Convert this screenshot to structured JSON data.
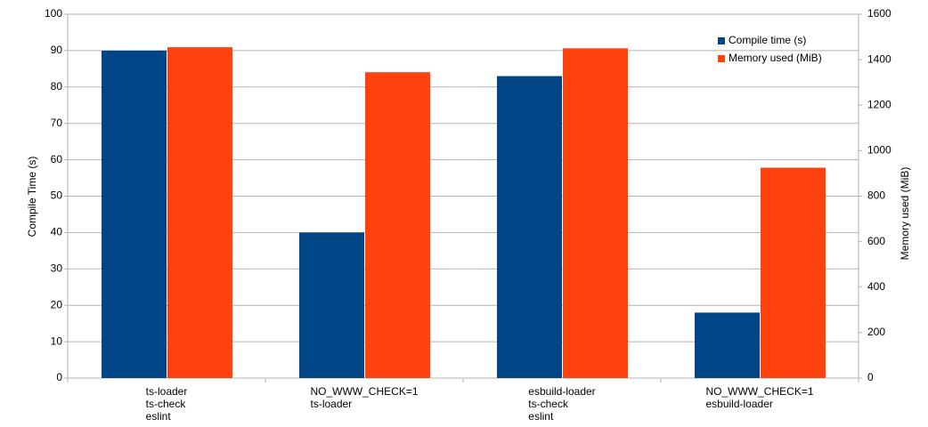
{
  "chart_data": {
    "type": "bar",
    "categories": [
      [
        "ts-loader",
        "ts-check",
        "eslint"
      ],
      [
        "NO_WWW_CHECK=1",
        "ts-loader"
      ],
      [
        "esbuild-loader",
        "ts-check",
        "eslint"
      ],
      [
        "NO_WWW_CHECK=1",
        "esbuild-loader"
      ]
    ],
    "series": [
      {
        "name": "Compile time (s)",
        "color": "#004586",
        "values": [
          90,
          40,
          83,
          18
        ]
      },
      {
        "name": "Memory used (MiB)",
        "color": "#ff420e",
        "axis": "y2",
        "values": [
          1455,
          1345,
          1450,
          925
        ]
      }
    ],
    "ylabel": "Compile Time (s)",
    "y2label": "Memory used (MiB)",
    "ylim": [
      0,
      100
    ],
    "yticks": [
      0,
      10,
      20,
      30,
      40,
      50,
      60,
      70,
      80,
      90,
      100
    ],
    "y2lim": [
      0,
      1600
    ],
    "y2ticks": [
      0,
      200,
      400,
      600,
      800,
      1000,
      1200,
      1400,
      1600
    ],
    "grid": true,
    "legend": "top-right"
  }
}
